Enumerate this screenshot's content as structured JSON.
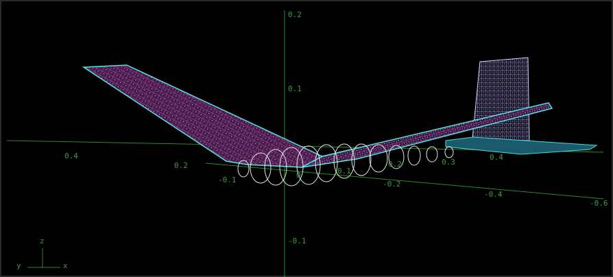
{
  "axes": {
    "z_ticks": [
      "0.2",
      "0.1",
      "-0.1"
    ],
    "x_ticks": [
      "0.4",
      "0.2",
      "0",
      "0.1",
      "0.2",
      "0.3",
      "0.4"
    ],
    "y_ticks": [
      "-0.1",
      "-0.2",
      "-0.4",
      "-0.6"
    ]
  },
  "triad": {
    "z": "z",
    "y": "y",
    "x": "x"
  }
}
